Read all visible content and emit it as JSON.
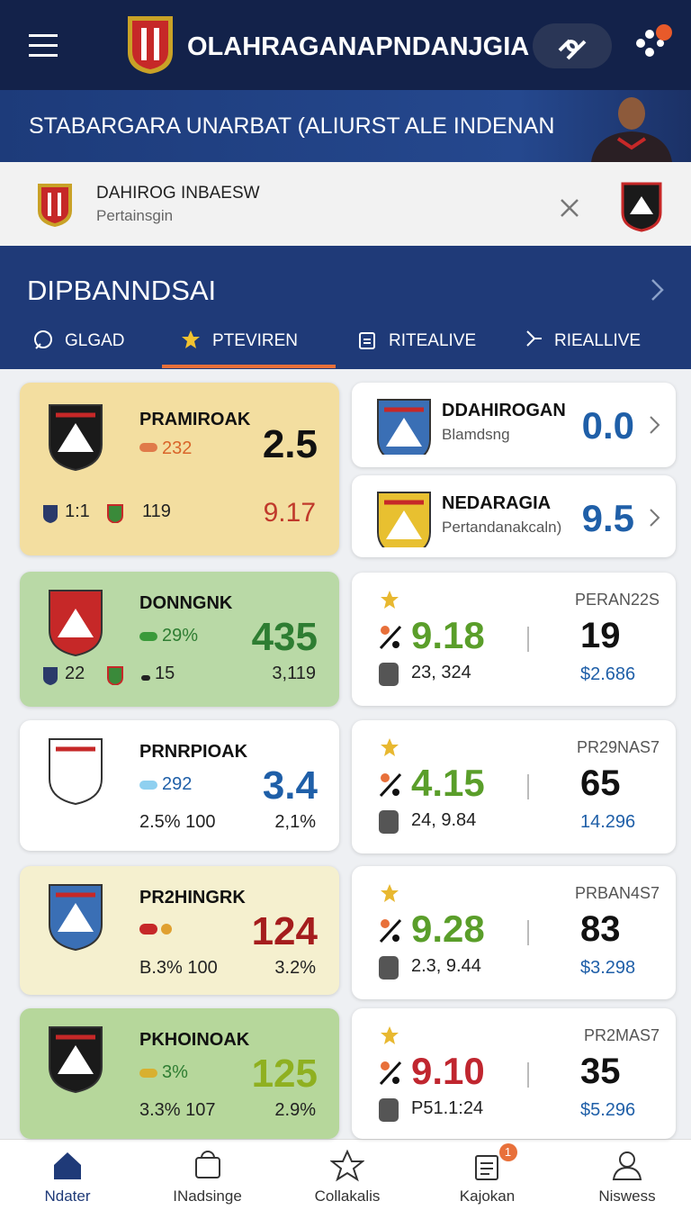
{
  "header": {
    "title": "OLAHRAGANAPNDANJGIA"
  },
  "banner": {
    "text": "STABARGARA UNARBAT (ALIURST ALE INDENAN"
  },
  "notice": {
    "title": "DAHIROG INBAESW",
    "subtitle": "Pertainsgin"
  },
  "section": {
    "title": "DIPBANNDSAI",
    "tabs": [
      "GLGAD",
      "PTEVIREN",
      "RITEALIVE",
      "RIEALLIVE"
    ]
  },
  "left_cards": [
    {
      "name": "PRAMIROAK",
      "stat": "232",
      "value": "2.5",
      "foot": [
        "1:1",
        "119",
        "9.17"
      ]
    },
    {
      "name": "DONNGNK",
      "stat": "29%",
      "value": "435",
      "foot": [
        "22",
        "15",
        "3,119"
      ]
    },
    {
      "name": "PRNRPIOAK",
      "stat": "292",
      "value": "3.4",
      "foot": [
        "2.5% 100",
        "2,1%"
      ]
    },
    {
      "name": "PR2HINGRK",
      "value": "124",
      "foot": [
        "B.3% 100",
        "3.2%"
      ]
    },
    {
      "name": "PKHOINOAK",
      "stat": "3%",
      "value": "125",
      "foot": [
        "3.3% 107",
        "2.9%"
      ]
    }
  ],
  "right_top": [
    {
      "name": "DDAHIROGAN",
      "sub": "Blamdsng",
      "value": "0.0"
    },
    {
      "name": "NEDARAGIA",
      "sub": "Pertandanakcaln)",
      "value": "9.5"
    }
  ],
  "right_cards": [
    {
      "score": "9.18",
      "sub": "23, 324",
      "label": "PERAN22S",
      "value": "19",
      "price": "$2.686"
    },
    {
      "score": "4.15",
      "sub": "24, 9.84",
      "label": "PR29NAS7",
      "value": "65",
      "price": "14.296"
    },
    {
      "score": "9.28",
      "sub": "2.3, 9.44",
      "label": "PRBAN4S7",
      "value": "83",
      "price": "$3.298"
    },
    {
      "score": "9.10",
      "sub": "P51.1:24",
      "label": "PR2MAS7",
      "value": "35",
      "price": "$5.296"
    }
  ],
  "nav": {
    "items": [
      "Ndater",
      "INadsinge",
      "Collakalis",
      "Kajokan",
      "Niswess"
    ],
    "badge": "1"
  }
}
